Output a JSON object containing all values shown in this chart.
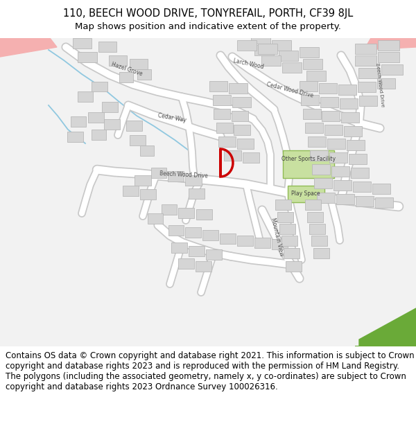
{
  "title_line1": "110, BEECH WOOD DRIVE, TONYREFAIL, PORTH, CF39 8JL",
  "title_line2": "Map shows position and indicative extent of the property.",
  "footer_text": "Contains OS data © Crown copyright and database right 2021. This information is subject to Crown copyright and database rights 2023 and is reproduced with the permission of HM Land Registry. The polygons (including the associated geometry, namely x, y co-ordinates) are subject to Crown copyright and database rights 2023 Ordnance Survey 100026316.",
  "title_fontsize": 10.5,
  "subtitle_fontsize": 9.5,
  "footer_fontsize": 8.5,
  "map_bg": "#f2f2f2",
  "road_color": "#ffffff",
  "road_edge": "#c8c8c8",
  "building_color": "#d5d5d5",
  "building_edge": "#b8b8b8",
  "highlight_edge": "#cc0000",
  "green_fill": "#b8d88a",
  "green_edge": "#80aa50",
  "pink_fill": "#f5b0b0",
  "blue_stream": "#90c8e0",
  "label_color": "#505050",
  "title_weight": "normal"
}
